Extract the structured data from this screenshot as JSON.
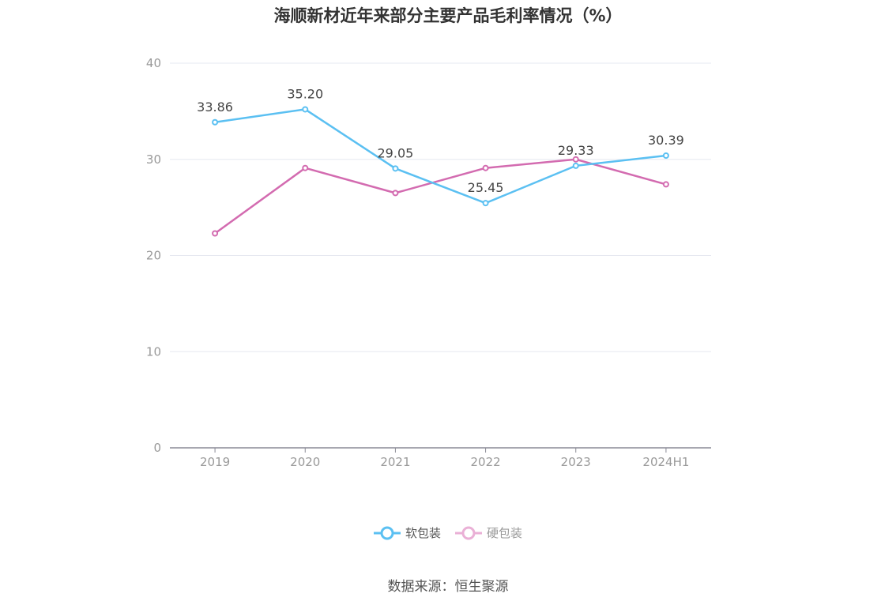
{
  "title": "海顺新材近年来部分主要产品毛利率情况（%）",
  "source": "数据来源：恒生聚源",
  "chart_data": {
    "type": "line",
    "categories": [
      "2019",
      "2020",
      "2021",
      "2022",
      "2023",
      "2024H1"
    ],
    "ylim": [
      0,
      40
    ],
    "yticks": [
      0,
      10,
      20,
      30,
      40
    ],
    "grid": true,
    "legend_position": "bottom",
    "series": [
      {
        "name": "软包装",
        "color": "#5bc0f2",
        "values": [
          33.86,
          35.2,
          29.05,
          25.45,
          29.33,
          30.39
        ],
        "labels": [
          "33.86",
          "35.20",
          "29.05",
          "25.45",
          "29.33",
          "30.39"
        ]
      },
      {
        "name": "硬包装",
        "color": "#d36bb0",
        "values": [
          22.3,
          29.1,
          26.5,
          29.1,
          30.0,
          27.4
        ]
      }
    ]
  }
}
